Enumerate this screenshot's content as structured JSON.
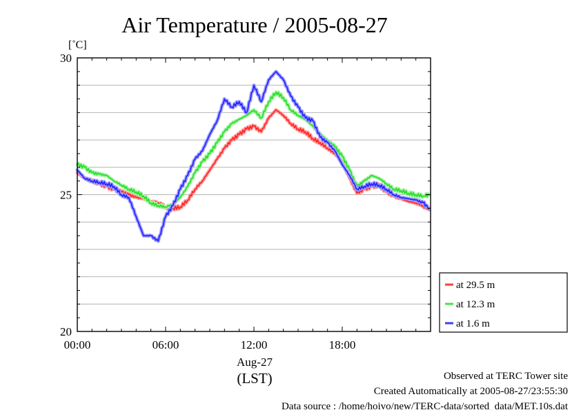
{
  "chart_data": {
    "type": "line",
    "title": "Air Temperature / 2005-08-27",
    "ylabel": "[˚C]",
    "xlabel": "(LST)",
    "x_date_label": "Aug-27",
    "ylim": [
      20,
      30
    ],
    "xlim_hours": [
      0,
      24
    ],
    "grid": true,
    "legend_placement": "bottom-right outside",
    "y_ticks": [
      20,
      25,
      30
    ],
    "x_ticks": [
      {
        "hour": 0,
        "label": "00:00"
      },
      {
        "hour": 6,
        "label": "06:00"
      },
      {
        "hour": 12,
        "label": "12:00"
      },
      {
        "hour": 18,
        "label": "18:00"
      }
    ],
    "series": [
      {
        "name": "at 29.5 m",
        "color": "#ff2020",
        "glow": "#ff9a9a",
        "points": [
          [
            0.0,
            25.8
          ],
          [
            0.5,
            25.6
          ],
          [
            1.0,
            25.5
          ],
          [
            1.5,
            25.4
          ],
          [
            2.0,
            25.3
          ],
          [
            2.5,
            25.2
          ],
          [
            3.0,
            25.1
          ],
          [
            3.5,
            25.0
          ],
          [
            4.0,
            24.9
          ],
          [
            4.5,
            24.85
          ],
          [
            5.0,
            24.75
          ],
          [
            5.5,
            24.7
          ],
          [
            6.0,
            24.55
          ],
          [
            6.5,
            24.5
          ],
          [
            7.0,
            24.55
          ],
          [
            7.5,
            24.8
          ],
          [
            8.0,
            25.2
          ],
          [
            8.5,
            25.5
          ],
          [
            9.0,
            25.9
          ],
          [
            9.5,
            26.3
          ],
          [
            10.0,
            26.7
          ],
          [
            10.5,
            27.0
          ],
          [
            11.0,
            27.2
          ],
          [
            11.5,
            27.4
          ],
          [
            12.0,
            27.5
          ],
          [
            12.5,
            27.3
          ],
          [
            13.0,
            27.8
          ],
          [
            13.5,
            28.1
          ],
          [
            14.0,
            27.9
          ],
          [
            14.5,
            27.6
          ],
          [
            15.0,
            27.4
          ],
          [
            15.5,
            27.3
          ],
          [
            16.0,
            27.05
          ],
          [
            16.5,
            26.9
          ],
          [
            17.0,
            26.7
          ],
          [
            17.5,
            26.5
          ],
          [
            18.0,
            26.2
          ],
          [
            18.5,
            25.6
          ],
          [
            19.0,
            25.05
          ],
          [
            19.5,
            25.2
          ],
          [
            20.0,
            25.3
          ],
          [
            20.5,
            25.35
          ],
          [
            21.0,
            25.1
          ],
          [
            21.5,
            24.95
          ],
          [
            22.0,
            24.85
          ],
          [
            22.5,
            24.75
          ],
          [
            23.0,
            24.7
          ],
          [
            23.5,
            24.6
          ],
          [
            23.9,
            24.45
          ]
        ]
      },
      {
        "name": "at 12.3 m",
        "color": "#20e020",
        "glow": "#a6f2a6",
        "points": [
          [
            0.0,
            26.1
          ],
          [
            0.5,
            26.0
          ],
          [
            1.0,
            25.8
          ],
          [
            1.5,
            25.75
          ],
          [
            2.0,
            25.7
          ],
          [
            2.5,
            25.5
          ],
          [
            3.0,
            25.35
          ],
          [
            3.5,
            25.2
          ],
          [
            4.0,
            25.1
          ],
          [
            4.5,
            24.95
          ],
          [
            5.0,
            24.7
          ],
          [
            5.5,
            24.6
          ],
          [
            6.0,
            24.55
          ],
          [
            6.5,
            24.65
          ],
          [
            7.0,
            24.9
          ],
          [
            7.5,
            25.3
          ],
          [
            8.0,
            25.8
          ],
          [
            8.5,
            26.2
          ],
          [
            9.0,
            26.5
          ],
          [
            9.5,
            26.9
          ],
          [
            10.0,
            27.3
          ],
          [
            10.5,
            27.6
          ],
          [
            11.0,
            27.75
          ],
          [
            11.5,
            27.9
          ],
          [
            12.0,
            28.1
          ],
          [
            12.5,
            27.8
          ],
          [
            13.0,
            28.4
          ],
          [
            13.5,
            28.75
          ],
          [
            14.0,
            28.55
          ],
          [
            14.5,
            28.1
          ],
          [
            15.0,
            27.9
          ],
          [
            15.5,
            27.75
          ],
          [
            16.0,
            27.5
          ],
          [
            16.5,
            27.2
          ],
          [
            17.0,
            26.95
          ],
          [
            17.5,
            26.75
          ],
          [
            18.0,
            26.4
          ],
          [
            18.5,
            25.9
          ],
          [
            19.0,
            25.3
          ],
          [
            19.5,
            25.5
          ],
          [
            20.0,
            25.7
          ],
          [
            20.5,
            25.6
          ],
          [
            21.0,
            25.4
          ],
          [
            21.5,
            25.2
          ],
          [
            22.0,
            25.15
          ],
          [
            22.5,
            25.05
          ],
          [
            23.0,
            25.0
          ],
          [
            23.5,
            24.95
          ],
          [
            23.9,
            25.0
          ]
        ]
      },
      {
        "name": "at 1.6 m",
        "color": "#2020ff",
        "glow": "#9a9aff",
        "points": [
          [
            0.0,
            25.9
          ],
          [
            0.5,
            25.6
          ],
          [
            1.0,
            25.5
          ],
          [
            1.5,
            25.45
          ],
          [
            2.0,
            25.4
          ],
          [
            2.5,
            25.3
          ],
          [
            3.0,
            25.0
          ],
          [
            3.5,
            24.9
          ],
          [
            4.0,
            24.2
          ],
          [
            4.5,
            23.5
          ],
          [
            5.0,
            23.5
          ],
          [
            5.5,
            23.3
          ],
          [
            6.0,
            24.2
          ],
          [
            6.5,
            24.6
          ],
          [
            7.0,
            25.2
          ],
          [
            7.5,
            25.7
          ],
          [
            8.0,
            26.3
          ],
          [
            8.5,
            26.6
          ],
          [
            9.0,
            27.2
          ],
          [
            9.5,
            27.7
          ],
          [
            10.0,
            28.5
          ],
          [
            10.5,
            28.2
          ],
          [
            11.0,
            28.4
          ],
          [
            11.5,
            28.0
          ],
          [
            12.0,
            29.0
          ],
          [
            12.5,
            28.4
          ],
          [
            13.0,
            29.2
          ],
          [
            13.5,
            29.5
          ],
          [
            14.0,
            29.2
          ],
          [
            14.5,
            28.6
          ],
          [
            15.0,
            28.2
          ],
          [
            15.5,
            27.8
          ],
          [
            16.0,
            27.7
          ],
          [
            16.5,
            27.1
          ],
          [
            17.0,
            26.9
          ],
          [
            17.5,
            26.6
          ],
          [
            18.0,
            26.1
          ],
          [
            18.5,
            25.7
          ],
          [
            19.0,
            25.2
          ],
          [
            19.5,
            25.3
          ],
          [
            20.0,
            25.4
          ],
          [
            20.5,
            25.35
          ],
          [
            21.0,
            25.2
          ],
          [
            21.5,
            25.0
          ],
          [
            22.0,
            24.9
          ],
          [
            22.5,
            24.85
          ],
          [
            23.0,
            24.8
          ],
          [
            23.5,
            24.7
          ],
          [
            23.9,
            24.5
          ]
        ]
      }
    ]
  },
  "footer": {
    "line1": "Observed at TERC Tower site",
    "line2": "Created Automatically at 2005-08-27/23:55:30",
    "line3": "Data source : /home/hoivo/new/TERC-data/sorted_data/MET.10s.dat"
  }
}
